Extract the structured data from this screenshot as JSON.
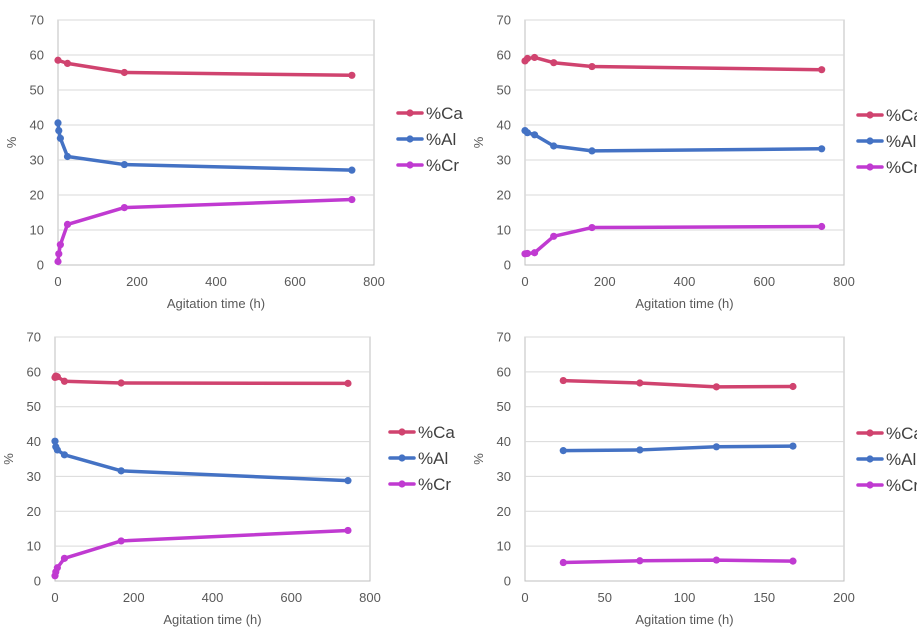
{
  "chart_data": [
    {
      "type": "line",
      "title": "",
      "xlabel": "Agitation time (h)",
      "ylabel": "%",
      "xlim": [
        0,
        800
      ],
      "ylim": [
        0,
        70
      ],
      "xticks": [
        0,
        200,
        400,
        600,
        800
      ],
      "yticks": [
        0,
        10,
        20,
        30,
        40,
        50,
        60,
        70
      ],
      "grid": true,
      "legend": "right",
      "series": [
        {
          "name": "%Ca",
          "color": "#d0436f",
          "points": [
            [
              0,
              58.5
            ],
            [
              24,
              57.6
            ],
            [
              168,
              55.0
            ],
            [
              744,
              54.2
            ]
          ]
        },
        {
          "name": "%Al",
          "color": "#4472c4",
          "points": [
            [
              0,
              40.6
            ],
            [
              2,
              38.4
            ],
            [
              6,
              36.2
            ],
            [
              24,
              31.0
            ],
            [
              168,
              28.7
            ],
            [
              744,
              27.1
            ]
          ]
        },
        {
          "name": "%Cr",
          "color": "#c03ad1",
          "points": [
            [
              0,
              1.0
            ],
            [
              2,
              3.2
            ],
            [
              6,
              5.8
            ],
            [
              24,
              11.6
            ],
            [
              168,
              16.4
            ],
            [
              744,
              18.7
            ]
          ]
        }
      ]
    },
    {
      "type": "line",
      "title": "",
      "xlabel": "Agitation time (h)",
      "ylabel": "%",
      "xlim": [
        0,
        800
      ],
      "ylim": [
        0,
        70
      ],
      "xticks": [
        0,
        200,
        400,
        600,
        800
      ],
      "yticks": [
        0,
        10,
        20,
        30,
        40,
        50,
        60,
        70
      ],
      "grid": true,
      "legend": "right",
      "series": [
        {
          "name": "%Ca",
          "color": "#d0436f",
          "points": [
            [
              0,
              58.3
            ],
            [
              6,
              59.0
            ],
            [
              24,
              59.3
            ],
            [
              72,
              57.8
            ],
            [
              168,
              56.7
            ],
            [
              744,
              55.8
            ]
          ]
        },
        {
          "name": "%Al",
          "color": "#4472c4",
          "points": [
            [
              0,
              38.4
            ],
            [
              6,
              37.8
            ],
            [
              24,
              37.2
            ],
            [
              72,
              34.0
            ],
            [
              168,
              32.6
            ],
            [
              744,
              33.2
            ]
          ]
        },
        {
          "name": "%Cr",
          "color": "#c03ad1",
          "points": [
            [
              0,
              3.2
            ],
            [
              6,
              3.3
            ],
            [
              24,
              3.5
            ],
            [
              72,
              8.2
            ],
            [
              168,
              10.7
            ],
            [
              744,
              11.0
            ]
          ]
        }
      ]
    },
    {
      "type": "line",
      "title": "",
      "xlabel": "Agitation time (h)",
      "ylabel": "%",
      "xlim": [
        0,
        800
      ],
      "ylim": [
        0,
        70
      ],
      "xticks": [
        0,
        200,
        400,
        600,
        800
      ],
      "yticks": [
        0,
        10,
        20,
        30,
        40,
        50,
        60,
        70
      ],
      "grid": true,
      "legend": "right",
      "series": [
        {
          "name": "%Ca",
          "color": "#d0436f",
          "points": [
            [
              0,
              58.4
            ],
            [
              2,
              58.8
            ],
            [
              6,
              58.6
            ],
            [
              24,
              57.3
            ],
            [
              168,
              56.8
            ],
            [
              744,
              56.7
            ]
          ]
        },
        {
          "name": "%Al",
          "color": "#4472c4",
          "points": [
            [
              0,
              40.1
            ],
            [
              2,
              38.5
            ],
            [
              6,
              37.6
            ],
            [
              24,
              36.2
            ],
            [
              168,
              31.6
            ],
            [
              744,
              28.8
            ]
          ]
        },
        {
          "name": "%Cr",
          "color": "#c03ad1",
          "points": [
            [
              0,
              1.5
            ],
            [
              2,
              2.6
            ],
            [
              6,
              3.8
            ],
            [
              24,
              6.5
            ],
            [
              168,
              11.5
            ],
            [
              744,
              14.5
            ]
          ]
        }
      ]
    },
    {
      "type": "line",
      "title": "",
      "xlabel": "Agitation time (h)",
      "ylabel": "%",
      "xlim": [
        0,
        200
      ],
      "ylim": [
        0,
        70
      ],
      "xticks": [
        0,
        50,
        100,
        150,
        200
      ],
      "yticks": [
        0,
        10,
        20,
        30,
        40,
        50,
        60,
        70
      ],
      "grid": true,
      "legend": "right",
      "series": [
        {
          "name": "%Ca",
          "color": "#d0436f",
          "points": [
            [
              24,
              57.5
            ],
            [
              72,
              56.8
            ],
            [
              120,
              55.7
            ],
            [
              168,
              55.8
            ]
          ]
        },
        {
          "name": "%Al",
          "color": "#4472c4",
          "points": [
            [
              24,
              37.4
            ],
            [
              72,
              37.6
            ],
            [
              120,
              38.5
            ],
            [
              168,
              38.7
            ]
          ]
        },
        {
          "name": "%Cr",
          "color": "#c03ad1",
          "points": [
            [
              24,
              5.3
            ],
            [
              72,
              5.8
            ],
            [
              120,
              6.0
            ],
            [
              168,
              5.7
            ]
          ]
        }
      ]
    }
  ]
}
